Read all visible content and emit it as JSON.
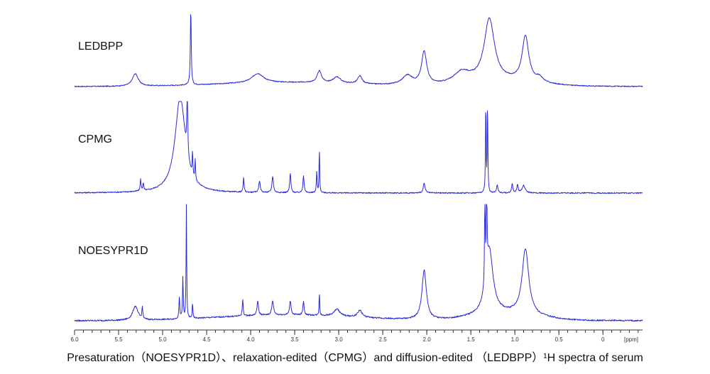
{
  "caption": "Presaturation（NOESYPR1D）、relaxation-edited（CPMG）and diffusion-edited （LEDBPP）¹H spectra of serum",
  "chart_data": {
    "type": "line",
    "xlabel": "[ppm]",
    "xlim": [
      6.0,
      -0.45
    ],
    "x_reversed": true,
    "x_ticks": [
      6.0,
      5.5,
      5.0,
      4.5,
      4.0,
      3.5,
      3.0,
      2.5,
      2.0,
      1.5,
      1.0,
      0.5,
      0
    ],
    "x_tick_labels": [
      "6.0",
      "5.5",
      "5.0",
      "4.5",
      "4.0",
      "3.5",
      "3.0",
      "2.5",
      "2.0",
      "1.5",
      "1.0",
      "0.5",
      "0"
    ],
    "unit_label": "[ppm]",
    "series": [
      {
        "name": "LEDBPP",
        "color": "#2b2bd6",
        "peaks": [
          {
            "ppm": 5.31,
            "height": 0.16,
            "width": 0.04
          },
          {
            "ppm": 4.68,
            "height": 0.98,
            "width": 0.006
          },
          {
            "ppm": 3.92,
            "height": 0.12,
            "width": 0.08
          },
          {
            "ppm": 3.22,
            "height": 0.15,
            "width": 0.03
          },
          {
            "ppm": 3.02,
            "height": 0.08,
            "width": 0.05
          },
          {
            "ppm": 2.76,
            "height": 0.1,
            "width": 0.03
          },
          {
            "ppm": 2.22,
            "height": 0.12,
            "width": 0.07
          },
          {
            "ppm": 2.03,
            "height": 0.42,
            "width": 0.035
          },
          {
            "ppm": 1.6,
            "height": 0.15,
            "width": 0.12
          },
          {
            "ppm": 1.29,
            "height": 0.8,
            "width": 0.07
          },
          {
            "ppm": 0.88,
            "height": 0.58,
            "width": 0.045
          },
          {
            "ppm": 0.72,
            "height": 0.06,
            "width": 0.05
          }
        ]
      },
      {
        "name": "CPMG",
        "color": "#2b2bd6",
        "peaks": [
          {
            "ppm": 5.25,
            "height": 0.12,
            "width": 0.006
          },
          {
            "ppm": 5.22,
            "height": 0.08,
            "width": 0.006
          },
          {
            "ppm": 4.8,
            "height": 1.0,
            "width": 0.07
          },
          {
            "ppm": 4.72,
            "height": 0.9,
            "width": 0.005
          },
          {
            "ppm": 4.66,
            "height": 0.26,
            "width": 0.004
          },
          {
            "ppm": 4.63,
            "height": 0.22,
            "width": 0.004
          },
          {
            "ppm": 4.08,
            "height": 0.15,
            "width": 0.006
          },
          {
            "ppm": 3.9,
            "height": 0.12,
            "width": 0.01
          },
          {
            "ppm": 3.75,
            "height": 0.17,
            "width": 0.01
          },
          {
            "ppm": 3.55,
            "height": 0.2,
            "width": 0.008
          },
          {
            "ppm": 3.4,
            "height": 0.18,
            "width": 0.008
          },
          {
            "ppm": 3.25,
            "height": 0.22,
            "width": 0.005
          },
          {
            "ppm": 3.22,
            "height": 0.48,
            "width": 0.004
          },
          {
            "ppm": 2.03,
            "height": 0.1,
            "width": 0.012
          },
          {
            "ppm": 1.33,
            "height": 0.98,
            "width": 0.004
          },
          {
            "ppm": 1.31,
            "height": 0.95,
            "width": 0.004
          },
          {
            "ppm": 1.2,
            "height": 0.08,
            "width": 0.01
          },
          {
            "ppm": 1.03,
            "height": 0.1,
            "width": 0.008
          },
          {
            "ppm": 0.97,
            "height": 0.09,
            "width": 0.008
          },
          {
            "ppm": 0.9,
            "height": 0.08,
            "width": 0.02
          }
        ]
      },
      {
        "name": "NOESYPR1D",
        "color": "#2b2bd6",
        "peaks": [
          {
            "ppm": 5.31,
            "height": 0.12,
            "width": 0.035
          },
          {
            "ppm": 5.23,
            "height": 0.1,
            "width": 0.006
          },
          {
            "ppm": 4.81,
            "height": 0.18,
            "width": 0.006
          },
          {
            "ppm": 4.77,
            "height": 0.35,
            "width": 0.005
          },
          {
            "ppm": 4.73,
            "height": 0.98,
            "width": 0.004
          },
          {
            "ppm": 4.66,
            "height": 0.14,
            "width": 0.004
          },
          {
            "ppm": 4.09,
            "height": 0.14,
            "width": 0.006
          },
          {
            "ppm": 3.92,
            "height": 0.12,
            "width": 0.01
          },
          {
            "ppm": 3.75,
            "height": 0.12,
            "width": 0.012
          },
          {
            "ppm": 3.55,
            "height": 0.12,
            "width": 0.01
          },
          {
            "ppm": 3.4,
            "height": 0.12,
            "width": 0.008
          },
          {
            "ppm": 3.22,
            "height": 0.2,
            "width": 0.004
          },
          {
            "ppm": 3.02,
            "height": 0.06,
            "width": 0.04
          },
          {
            "ppm": 2.76,
            "height": 0.06,
            "width": 0.03
          },
          {
            "ppm": 2.03,
            "height": 0.42,
            "width": 0.03
          },
          {
            "ppm": 1.34,
            "height": 0.98,
            "width": 0.004
          },
          {
            "ppm": 1.32,
            "height": 0.95,
            "width": 0.004
          },
          {
            "ppm": 1.29,
            "height": 0.55,
            "width": 0.05
          },
          {
            "ppm": 0.88,
            "height": 0.56,
            "width": 0.045
          }
        ]
      }
    ]
  }
}
